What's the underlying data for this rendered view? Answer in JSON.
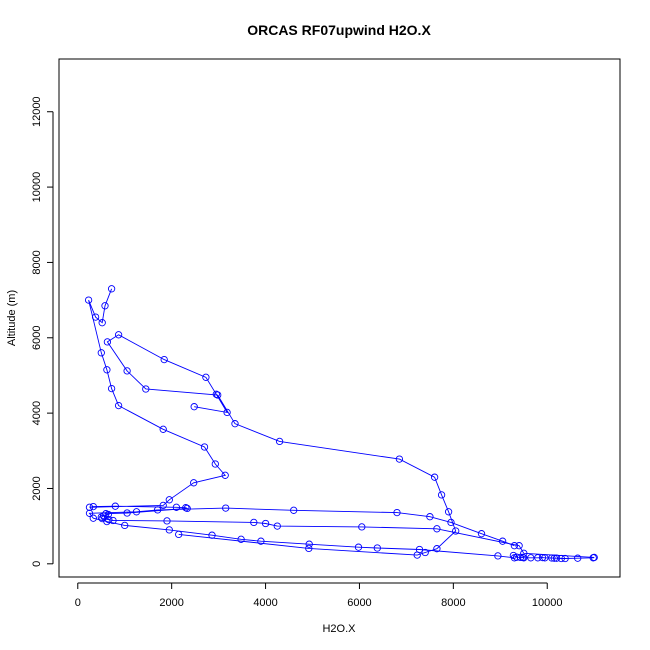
{
  "chart_data": {
    "type": "line",
    "title": "ORCAS RF07upwind H2O.X",
    "xlabel": "H2O.X",
    "ylabel": "Altitude (m)",
    "xlim": [
      -400,
      11550
    ],
    "ylim": [
      -350,
      13400
    ],
    "xticks": [
      0,
      2000,
      4000,
      6000,
      8000,
      10000
    ],
    "yticks": [
      0,
      2000,
      4000,
      6000,
      8000,
      10000,
      12000
    ],
    "grid": false,
    "legend": "none",
    "series_color": "#0000ff",
    "marker": "open-circle",
    "series": [
      {
        "x": [
          720,
          580,
          520,
          380,
          230,
          500,
          620,
          720,
          870,
          1820,
          2700,
          2930,
          3140,
          2470,
          1950,
          1820,
          250,
          330,
          800,
          2100,
          2300,
          2330,
          1050,
          600,
          650,
          550,
          500,
          520,
          660,
          750,
          1900,
          3750,
          4000,
          4250,
          6050,
          7650,
          9400,
          9500,
          11000,
          10980,
          10650,
          10380,
          10300,
          10200,
          10150,
          10100,
          9950,
          9900,
          9800,
          9650,
          9500,
          9480,
          9430,
          9350,
          9280
        ],
        "y": [
          7300,
          6850,
          6400,
          6550,
          7000,
          5600,
          5150,
          4650,
          4200,
          3570,
          3100,
          2650,
          2350,
          2150,
          1700,
          1550,
          1500,
          1520,
          1530,
          1500,
          1490,
          1470,
          1350,
          1330,
          1310,
          1270,
          1240,
          1200,
          1170,
          1150,
          1140,
          1100,
          1070,
          1000,
          980,
          930,
          480,
          280,
          170,
          160,
          150,
          140,
          140,
          150,
          150,
          155,
          160,
          165,
          160,
          160,
          160,
          170,
          170,
          175,
          220
        ]
      },
      {
        "x": [
          2150,
          4920,
          7230,
          7400,
          7650,
          8050,
          7900,
          7750,
          7600,
          6850,
          4300,
          3350,
          2980,
          1450,
          1050,
          630,
          870,
          1840,
          2730,
          2950,
          3180,
          2480
        ],
        "y": [
          780,
          410,
          230,
          300,
          400,
          870,
          1380,
          1830,
          2300,
          2780,
          3250,
          3720,
          4480,
          4640,
          5120,
          5890,
          6080,
          5420,
          4950,
          4500,
          4020,
          4170
        ]
      },
      {
        "x": [
          9300,
          8950,
          7280,
          6380,
          5980,
          4930,
          3900,
          3480,
          2860,
          1950,
          1000,
          620,
          330,
          250,
          1250,
          1700,
          3150,
          4600,
          6800,
          7500,
          7950,
          8600,
          9050,
          9300
        ],
        "y": [
          160,
          210,
          380,
          420,
          440,
          520,
          600,
          650,
          760,
          900,
          1020,
          1120,
          1210,
          1340,
          1380,
          1430,
          1480,
          1420,
          1360,
          1250,
          1100,
          800,
          600,
          480
        ]
      }
    ]
  }
}
